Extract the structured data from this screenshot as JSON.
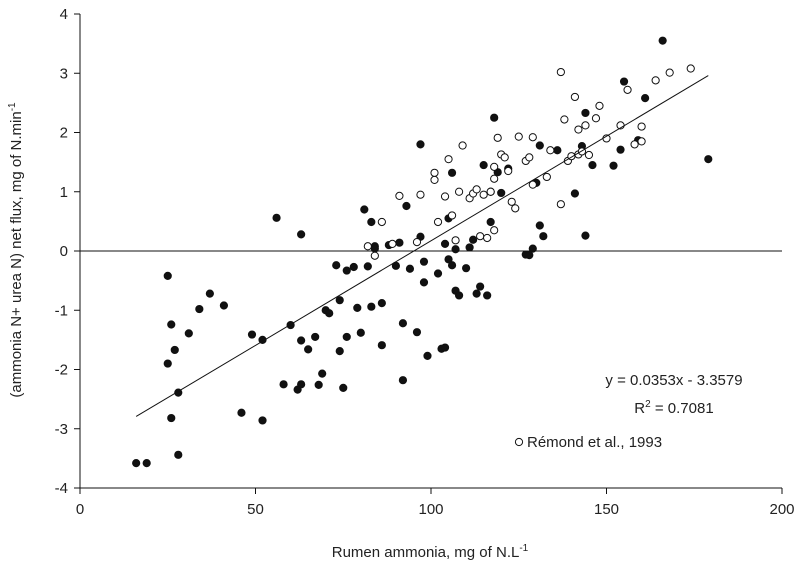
{
  "chart_data": {
    "type": "scatter",
    "title": "",
    "xlabel": "Rumen ammonia, mg of N.L",
    "xlabel_sup": "-1",
    "ylabel": "(ammonia N+ urea N) net flux, mg of N.min",
    "ylabel_sup": "-1",
    "xlim": [
      0,
      200
    ],
    "ylim": [
      -4,
      4
    ],
    "xticks": [
      "0",
      "50",
      "100",
      "150",
      "200"
    ],
    "yticks": [
      "-4",
      "-3",
      "-2",
      "-1",
      "0",
      "1",
      "2",
      "3",
      "4"
    ],
    "grid": false,
    "zero_line": true,
    "equation": "y = 0.0353x - 3.3579",
    "r2_label": "R",
    "r2_sup": "2",
    "r2_value": " = 0.7081",
    "trendline": {
      "slope": 0.0353,
      "intercept": -3.3579,
      "x_range": [
        16,
        179
      ]
    },
    "legend": {
      "open_series_label": "Rémond et al., 1993",
      "placement": "bottom-right"
    },
    "series": [
      {
        "marker": "filled",
        "points": [
          [
            16,
            -3.58
          ],
          [
            19,
            -3.58
          ],
          [
            28,
            -3.44
          ],
          [
            25,
            -0.42
          ],
          [
            26,
            -1.24
          ],
          [
            27,
            -1.67
          ],
          [
            25,
            -1.9
          ],
          [
            26,
            -2.82
          ],
          [
            28,
            -2.39
          ],
          [
            31,
            -1.39
          ],
          [
            34,
            -0.98
          ],
          [
            37,
            -0.72
          ],
          [
            41,
            -0.92
          ],
          [
            46,
            -2.73
          ],
          [
            49,
            -1.41
          ],
          [
            52,
            -1.5
          ],
          [
            52,
            -2.86
          ],
          [
            56,
            0.56
          ],
          [
            58,
            -2.25
          ],
          [
            60,
            -1.25
          ],
          [
            62,
            -2.34
          ],
          [
            63,
            -2.25
          ],
          [
            63,
            -1.51
          ],
          [
            63,
            0.28
          ],
          [
            65,
            -1.66
          ],
          [
            67,
            -1.45
          ],
          [
            68,
            -2.26
          ],
          [
            69,
            -2.07
          ],
          [
            70,
            -1.0
          ],
          [
            71,
            -1.05
          ],
          [
            73,
            -0.24
          ],
          [
            74,
            -0.83
          ],
          [
            74,
            -1.69
          ],
          [
            75,
            -2.31
          ],
          [
            76,
            -0.33
          ],
          [
            76,
            -1.45
          ],
          [
            78,
            -0.27
          ],
          [
            79,
            -0.96
          ],
          [
            80,
            -1.38
          ],
          [
            81,
            0.7
          ],
          [
            82,
            -0.26
          ],
          [
            83,
            0.49
          ],
          [
            83,
            -0.94
          ],
          [
            84,
            0.08
          ],
          [
            84,
            0.04
          ],
          [
            86,
            -0.88
          ],
          [
            86,
            -1.59
          ],
          [
            88,
            0.1
          ],
          [
            90,
            -0.25
          ],
          [
            91,
            0.14
          ],
          [
            92,
            -1.22
          ],
          [
            92,
            -2.18
          ],
          [
            93,
            0.76
          ],
          [
            94,
            -0.3
          ],
          [
            96,
            -1.37
          ],
          [
            97,
            0.24
          ],
          [
            97,
            1.8
          ],
          [
            98,
            -0.53
          ],
          [
            98,
            -0.18
          ],
          [
            99,
            -1.77
          ],
          [
            102,
            -0.38
          ],
          [
            103,
            -1.65
          ],
          [
            104,
            -1.63
          ],
          [
            104,
            0.12
          ],
          [
            105,
            0.55
          ],
          [
            105,
            -0.14
          ],
          [
            106,
            -0.24
          ],
          [
            106,
            1.32
          ],
          [
            107,
            0.03
          ],
          [
            107,
            -0.67
          ],
          [
            108,
            -0.75
          ],
          [
            110,
            -0.29
          ],
          [
            111,
            0.06
          ],
          [
            112,
            0.19
          ],
          [
            113,
            -0.72
          ],
          [
            114,
            -0.6
          ],
          [
            115,
            1.45
          ],
          [
            116,
            -0.75
          ],
          [
            117,
            1.0
          ],
          [
            117,
            0.49
          ],
          [
            118,
            2.25
          ],
          [
            119,
            1.33
          ],
          [
            120,
            0.98
          ],
          [
            122,
            1.39
          ],
          [
            127,
            -0.06
          ],
          [
            128,
            -0.07
          ],
          [
            129,
            0.04
          ],
          [
            130,
            1.15
          ],
          [
            131,
            0.43
          ],
          [
            131,
            1.78
          ],
          [
            132,
            0.25
          ],
          [
            136,
            1.7
          ],
          [
            141,
            0.97
          ],
          [
            143,
            1.77
          ],
          [
            144,
            2.33
          ],
          [
            144,
            0.26
          ],
          [
            146,
            1.45
          ],
          [
            152,
            1.44
          ],
          [
            154,
            1.71
          ],
          [
            155,
            2.86
          ],
          [
            159,
            1.87
          ],
          [
            161,
            2.58
          ],
          [
            166,
            3.55
          ],
          [
            179,
            1.55
          ]
        ]
      },
      {
        "marker": "open",
        "name": "Rémond et al., 1993",
        "points": [
          [
            82,
            0.08
          ],
          [
            84,
            -0.08
          ],
          [
            86,
            0.49
          ],
          [
            89,
            0.12
          ],
          [
            91,
            0.93
          ],
          [
            96,
            0.15
          ],
          [
            97,
            0.95
          ],
          [
            101,
            1.2
          ],
          [
            101,
            1.32
          ],
          [
            102,
            0.49
          ],
          [
            104,
            0.92
          ],
          [
            105,
            1.55
          ],
          [
            106,
            0.6
          ],
          [
            107,
            0.18
          ],
          [
            108,
            1.0
          ],
          [
            109,
            1.78
          ],
          [
            111,
            0.89
          ],
          [
            112,
            0.97
          ],
          [
            113,
            1.04
          ],
          [
            114,
            0.25
          ],
          [
            115,
            0.95
          ],
          [
            116,
            0.22
          ],
          [
            117,
            1.0
          ],
          [
            118,
            0.35
          ],
          [
            118,
            1.42
          ],
          [
            118,
            1.22
          ],
          [
            119,
            1.91
          ],
          [
            120,
            1.63
          ],
          [
            121,
            1.58
          ],
          [
            122,
            1.35
          ],
          [
            123,
            0.83
          ],
          [
            124,
            0.72
          ],
          [
            125,
            1.93
          ],
          [
            127,
            1.52
          ],
          [
            128,
            1.58
          ],
          [
            129,
            1.12
          ],
          [
            129,
            1.92
          ],
          [
            133,
            1.25
          ],
          [
            134,
            1.7
          ],
          [
            137,
            3.02
          ],
          [
            137,
            0.79
          ],
          [
            138,
            2.22
          ],
          [
            139,
            1.52
          ],
          [
            140,
            1.6
          ],
          [
            141,
            2.6
          ],
          [
            142,
            1.63
          ],
          [
            142,
            2.05
          ],
          [
            143,
            1.68
          ],
          [
            144,
            2.12
          ],
          [
            145,
            1.62
          ],
          [
            147,
            2.24
          ],
          [
            148,
            2.45
          ],
          [
            150,
            1.9
          ],
          [
            154,
            2.12
          ],
          [
            156,
            2.72
          ],
          [
            158,
            1.8
          ],
          [
            160,
            2.1
          ],
          [
            160,
            1.85
          ],
          [
            164,
            2.88
          ],
          [
            168,
            3.01
          ],
          [
            174,
            3.08
          ]
        ]
      }
    ]
  }
}
